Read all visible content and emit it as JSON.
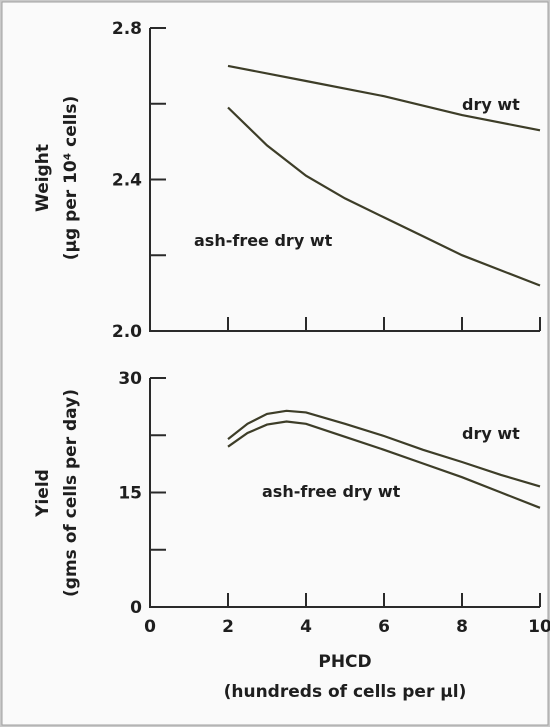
{
  "chart_data": [
    {
      "type": "line",
      "ylabel": "Weight",
      "ylabel_sub": "(µg per 10⁴ cells)",
      "ylim": [
        2.0,
        2.8
      ],
      "yticks": [
        2.0,
        2.4,
        2.8
      ],
      "ytick_labels": [
        "2.0",
        "2.4",
        "2.8"
      ],
      "xlim": [
        0,
        10
      ],
      "series": [
        {
          "name": "dry wt",
          "x": [
            2,
            4,
            6,
            8,
            10
          ],
          "y": [
            2.7,
            2.66,
            2.62,
            2.57,
            2.53
          ]
        },
        {
          "name": "ash-free dry wt",
          "x": [
            2,
            3,
            4,
            5,
            6,
            7,
            8,
            9,
            10
          ],
          "y": [
            2.59,
            2.49,
            2.41,
            2.35,
            2.3,
            2.25,
            2.2,
            2.16,
            2.12
          ]
        }
      ]
    },
    {
      "type": "line",
      "ylabel": "Yield",
      "ylabel_sub": "(gms of cells per day)",
      "ylim": [
        0,
        30
      ],
      "yticks": [
        0,
        15,
        30
      ],
      "ytick_labels": [
        "0",
        "15",
        "30"
      ],
      "xlabel": "PHCD",
      "xlabel_sub": "(hundreds of cells per µl)",
      "xlim": [
        0,
        10
      ],
      "xticks": [
        0,
        2,
        4,
        6,
        8,
        10
      ],
      "xtick_labels": [
        "0",
        "2",
        "4",
        "6",
        "8",
        "10"
      ],
      "series": [
        {
          "name": "dry wt",
          "x": [
            2,
            2.5,
            3,
            3.5,
            4,
            5,
            6,
            7,
            8,
            9,
            10
          ],
          "y": [
            22,
            24,
            25.3,
            25.7,
            25.5,
            24,
            22.4,
            20.6,
            19.0,
            17.3,
            15.8
          ]
        },
        {
          "name": "ash-free dry wt",
          "x": [
            2,
            2.5,
            3,
            3.5,
            4,
            5,
            6,
            7,
            8,
            9,
            10
          ],
          "y": [
            21,
            22.8,
            23.9,
            24.3,
            24,
            22.3,
            20.6,
            18.8,
            17.0,
            15.0,
            13.0
          ]
        }
      ]
    }
  ]
}
